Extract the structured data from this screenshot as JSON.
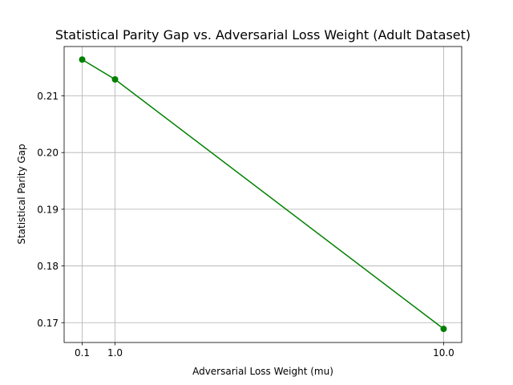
{
  "chart_data": {
    "type": "line",
    "title": "Statistical Parity Gap vs. Adversarial Loss Weight (Adult Dataset)",
    "xlabel": "Adversarial Loss Weight (mu)",
    "ylabel": "Statistical Parity Gap",
    "x_ticks": [
      "0.1",
      "1.0",
      "10.0"
    ],
    "y_ticks": [
      "0.17",
      "0.18",
      "0.19",
      "0.20",
      "0.21"
    ],
    "xlim": [
      -0.395,
      10.495
    ],
    "ylim": [
      0.1665,
      0.2187
    ],
    "grid": true,
    "series": [
      {
        "color": "#008000",
        "x": [
          0.1,
          1.0,
          10.0
        ],
        "y": [
          0.2164,
          0.2129,
          0.1689
        ]
      }
    ]
  }
}
